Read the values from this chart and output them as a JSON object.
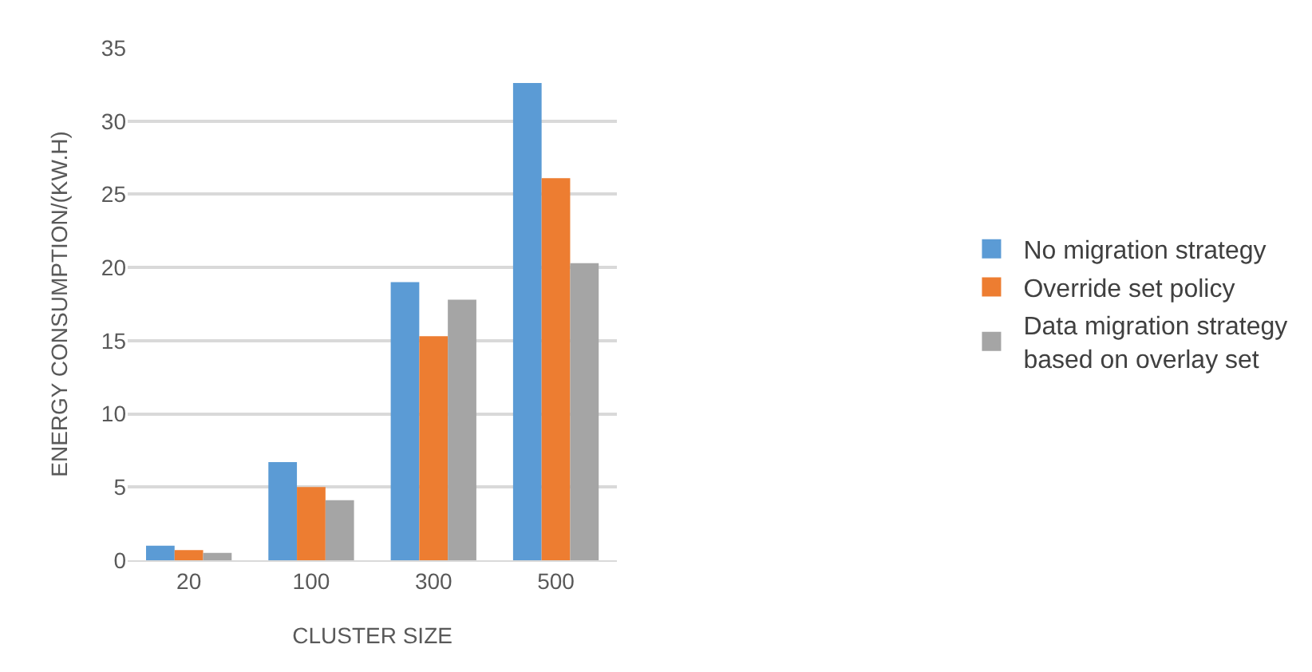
{
  "chart_data": {
    "type": "bar",
    "xlabel": "CLUSTER SIZE",
    "ylabel": "ENERGY CONSUMPTION/(KW.H)",
    "categories": [
      "20",
      "100",
      "300",
      "500"
    ],
    "series": [
      {
        "name": "No migration strategy",
        "color": "#5b9bd5",
        "values": [
          1.0,
          6.7,
          19.0,
          32.6
        ]
      },
      {
        "name": "Override set policy",
        "color": "#ed7d31",
        "values": [
          0.7,
          5.0,
          15.3,
          26.1
        ]
      },
      {
        "name": "Data migration strategy based on overlay set",
        "color": "#a5a5a5",
        "values": [
          0.5,
          4.1,
          17.8,
          20.3
        ]
      }
    ],
    "ylim": [
      0,
      35
    ],
    "yticks": [
      0,
      5,
      10,
      15,
      20,
      25,
      30,
      35
    ],
    "grid": "y",
    "legend": "right"
  }
}
